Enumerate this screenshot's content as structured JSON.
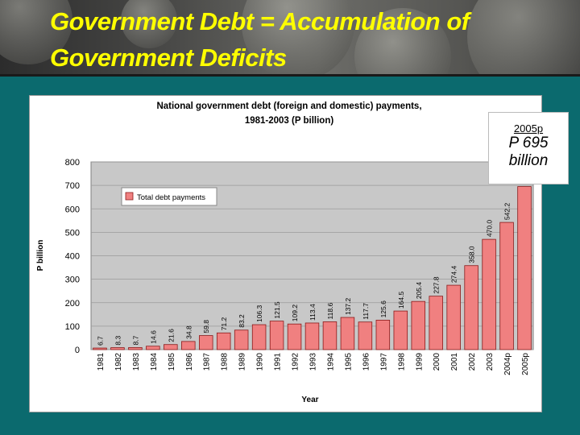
{
  "slide": {
    "title_line1": "Government Debt = Accumulation of",
    "title_line2": "Government Deficits"
  },
  "callout": {
    "year": "2005p",
    "amount_line1": "P 695",
    "amount_line2": "billion"
  },
  "colors": {
    "background": "#0b6a6e",
    "title": "#ffff00",
    "bar_fill": "#f08080",
    "bar_stroke": "#8b1a1a",
    "plot_bg": "#c8c8c8"
  },
  "chart_data": {
    "type": "bar",
    "title_line1": "National government debt (foreign and domestic) payments,",
    "title_line2": "1981-2003 (P billion)",
    "xlabel": "Year",
    "ylabel": "P billion",
    "ylim": [
      0,
      800
    ],
    "yticks": [
      0,
      100,
      200,
      300,
      400,
      500,
      600,
      700,
      800
    ],
    "legend": {
      "label": "Total debt payments",
      "placement": "top-left"
    },
    "grid": true,
    "categories": [
      "1981",
      "1982",
      "1983",
      "1984",
      "1985",
      "1986",
      "1987",
      "1988",
      "1989",
      "1990",
      "1991",
      "1992",
      "1993",
      "1994",
      "1995",
      "1996",
      "1997",
      "1998",
      "1999",
      "2000",
      "2001",
      "2002",
      "2003",
      "2004p",
      "2005p"
    ],
    "series": [
      {
        "name": "Total debt payments",
        "values": [
          6.7,
          8.3,
          8.7,
          14.6,
          21.6,
          34.8,
          59.8,
          71.2,
          83.2,
          106.3,
          121.5,
          109.2,
          113.4,
          118.6,
          137.2,
          117.7,
          125.6,
          164.5,
          205.4,
          227.8,
          274.4,
          358.0,
          470.0,
          542.2,
          695.0
        ],
        "labels": [
          "6.7",
          "8.3",
          "8.7",
          "14.6",
          "21.6",
          "34.8",
          "59.8",
          "71.2",
          "83.2",
          "106.3",
          "121.5",
          "109.2",
          "113.4",
          "118.6",
          "137.2",
          "117.7",
          "125.6",
          "164.5",
          "205.4",
          "227.8",
          "274.4",
          "358.0",
          "470.0",
          "542.2",
          "695.0"
        ]
      }
    ]
  }
}
